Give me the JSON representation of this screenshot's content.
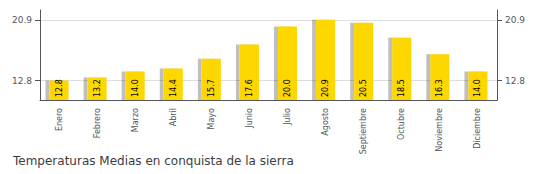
{
  "chart_data": {
    "type": "bar",
    "title": "Temperaturas Medias en conquista de la sierra",
    "categories": [
      "Enero",
      "Febrero",
      "Marzo",
      "Abril",
      "Mayo",
      "Junio",
      "Julio",
      "Agosto",
      "Septiembre",
      "Octubre",
      "Noviembre",
      "Diciembre"
    ],
    "values": [
      12.8,
      13.2,
      14.0,
      14.4,
      15.7,
      17.6,
      20.0,
      20.9,
      20.5,
      18.5,
      16.3,
      14.0
    ],
    "value_labels": [
      "12.8",
      "13.2",
      "14.0",
      "14.4",
      "15.7",
      "17.6",
      "20.0",
      "20.9",
      "20.5",
      "18.5",
      "16.3",
      "14.0"
    ],
    "data_labels": true,
    "color": "#FFD700",
    "ylim": [
      10.2,
      22.2
    ],
    "yticks": [
      12.8,
      20.9
    ],
    "y2lim": [
      10.2,
      22.2
    ],
    "y2ticks": [
      12.8,
      20.9
    ],
    "grid": true
  }
}
